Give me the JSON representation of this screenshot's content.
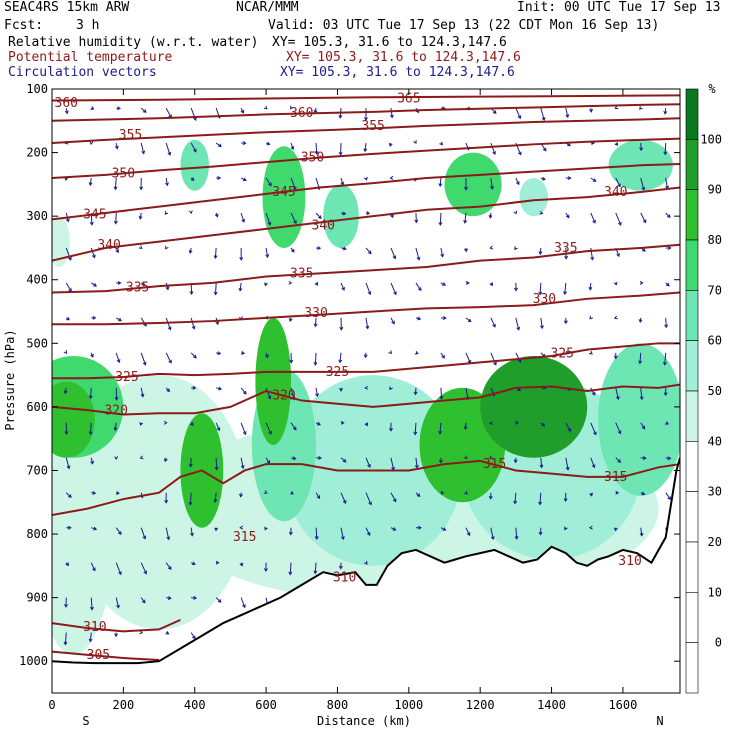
{
  "header": {
    "model": "SEAC4RS 15km ARW",
    "org": "NCAR/MMM",
    "init": "Init: 00 UTC Tue 17 Sep 13",
    "fcst_label": "Fcst:",
    "fcst_value": "3 h",
    "valid": "Valid: 03 UTC Tue 17 Sep 13 (22 CDT Mon 16 Sep 13)",
    "rh_label": "Relative humidity (w.r.t. water)",
    "rh_xy": "XY= 105.3, 31.6 to 124.3,147.6",
    "theta_label": "Potential temperature",
    "theta_xy": "XY= 105.3, 31.6 to 124.3,147.6",
    "vec_label": "Circulation vectors",
    "vec_xy": "XY= 105.3, 31.6 to 124.3,147.6"
  },
  "colors": {
    "theta": "#8b1a1a",
    "vectors": "#1c1c8c",
    "rh_text": "#000000",
    "theta_text": "#8b1a1a",
    "vec_text": "#1c1c8c"
  },
  "chart_data": {
    "type": "heatmap",
    "xlabel": "Distance (km)",
    "ylabel": "Pressure (hPa)",
    "xlim": [
      0,
      1760
    ],
    "ylim": [
      1050,
      100
    ],
    "x_ticks": [
      0,
      200,
      400,
      600,
      800,
      1000,
      1200,
      1400,
      1600
    ],
    "y_ticks": [
      100,
      200,
      300,
      400,
      500,
      600,
      700,
      800,
      900,
      1000
    ],
    "x_end_labels": [
      "S",
      "N"
    ],
    "colorbar": {
      "unit": "%",
      "ticks": [
        0,
        10,
        20,
        30,
        40,
        50,
        60,
        70,
        80,
        90,
        100
      ],
      "colors": [
        "#ffffff",
        "#ffffff",
        "#ffffff",
        "#ffffff",
        "#cdf5e6",
        "#a0eed7",
        "#6ee6b4",
        "#3fd96e",
        "#2fc02f",
        "#1f9e2c",
        "#0a7a1e"
      ]
    },
    "terrain": [
      [
        0,
        1000
      ],
      [
        60,
        1002
      ],
      [
        120,
        1003
      ],
      [
        180,
        1003
      ],
      [
        240,
        1003
      ],
      [
        300,
        1000
      ],
      [
        360,
        980
      ],
      [
        420,
        960
      ],
      [
        480,
        940
      ],
      [
        540,
        925
      ],
      [
        580,
        915
      ],
      [
        640,
        900
      ],
      [
        700,
        880
      ],
      [
        760,
        860
      ],
      [
        800,
        865
      ],
      [
        850,
        860
      ],
      [
        880,
        880
      ],
      [
        910,
        880
      ],
      [
        940,
        850
      ],
      [
        980,
        830
      ],
      [
        1020,
        825
      ],
      [
        1060,
        835
      ],
      [
        1100,
        845
      ],
      [
        1130,
        840
      ],
      [
        1160,
        835
      ],
      [
        1200,
        830
      ],
      [
        1240,
        825
      ],
      [
        1280,
        835
      ],
      [
        1320,
        845
      ],
      [
        1360,
        840
      ],
      [
        1400,
        820
      ],
      [
        1440,
        830
      ],
      [
        1470,
        845
      ],
      [
        1500,
        850
      ],
      [
        1530,
        840
      ],
      [
        1560,
        835
      ],
      [
        1600,
        825
      ],
      [
        1640,
        830
      ],
      [
        1680,
        845
      ],
      [
        1720,
        805
      ],
      [
        1750,
        700
      ],
      [
        1760,
        680
      ]
    ],
    "theta_contours": [
      {
        "value": 305,
        "points": [
          [
            0,
            985
          ],
          [
            100,
            990
          ],
          [
            200,
            995
          ],
          [
            300,
            998
          ]
        ]
      },
      {
        "value": 310,
        "points": [
          [
            0,
            940
          ],
          [
            100,
            948
          ],
          [
            200,
            953
          ],
          [
            300,
            950
          ],
          [
            360,
            935
          ]
        ]
      },
      {
        "value": 315,
        "points": [
          [
            0,
            770
          ],
          [
            100,
            760
          ],
          [
            200,
            745
          ],
          [
            300,
            735
          ],
          [
            360,
            710
          ],
          [
            420,
            700
          ],
          [
            480,
            720
          ],
          [
            540,
            700
          ],
          [
            600,
            690
          ],
          [
            700,
            690
          ],
          [
            800,
            700
          ],
          [
            900,
            700
          ],
          [
            1000,
            700
          ],
          [
            1100,
            690
          ],
          [
            1200,
            685
          ],
          [
            1300,
            700
          ],
          [
            1400,
            705
          ],
          [
            1500,
            710
          ],
          [
            1600,
            710
          ],
          [
            1700,
            695
          ],
          [
            1760,
            690
          ]
        ]
      },
      {
        "value": 320,
        "points": [
          [
            0,
            600
          ],
          [
            100,
            605
          ],
          [
            200,
            612
          ],
          [
            300,
            610
          ],
          [
            400,
            610
          ],
          [
            500,
            600
          ],
          [
            600,
            575
          ],
          [
            700,
            590
          ],
          [
            800,
            595
          ],
          [
            900,
            600
          ],
          [
            1000,
            595
          ],
          [
            1100,
            590
          ],
          [
            1200,
            585
          ],
          [
            1300,
            570
          ],
          [
            1400,
            568
          ],
          [
            1500,
            575
          ],
          [
            1600,
            568
          ],
          [
            1700,
            570
          ],
          [
            1760,
            565
          ]
        ]
      },
      {
        "value": 325,
        "points": [
          [
            0,
            555
          ],
          [
            100,
            555
          ],
          [
            200,
            553
          ],
          [
            300,
            548
          ],
          [
            400,
            550
          ],
          [
            500,
            548
          ],
          [
            600,
            545
          ],
          [
            700,
            545
          ],
          [
            800,
            545
          ],
          [
            900,
            545
          ],
          [
            1000,
            540
          ],
          [
            1100,
            535
          ],
          [
            1200,
            530
          ],
          [
            1300,
            525
          ],
          [
            1400,
            520
          ],
          [
            1500,
            510
          ],
          [
            1600,
            505
          ],
          [
            1700,
            500
          ],
          [
            1760,
            500
          ]
        ]
      },
      {
        "value": 330,
        "points": [
          [
            0,
            470
          ],
          [
            150,
            470
          ],
          [
            300,
            468
          ],
          [
            450,
            465
          ],
          [
            600,
            460
          ],
          [
            750,
            455
          ],
          [
            900,
            450
          ],
          [
            1050,
            445
          ],
          [
            1200,
            443
          ],
          [
            1350,
            440
          ],
          [
            1500,
            430
          ],
          [
            1650,
            425
          ],
          [
            1760,
            420
          ]
        ]
      },
      {
        "value": 335,
        "points": [
          [
            0,
            420
          ],
          [
            150,
            418
          ],
          [
            300,
            410
          ],
          [
            450,
            405
          ],
          [
            600,
            395
          ],
          [
            750,
            390
          ],
          [
            900,
            385
          ],
          [
            1050,
            380
          ],
          [
            1200,
            370
          ],
          [
            1350,
            365
          ],
          [
            1500,
            355
          ],
          [
            1650,
            350
          ],
          [
            1760,
            345
          ]
        ]
      },
      {
        "value": 340,
        "points": [
          [
            0,
            370
          ],
          [
            150,
            350
          ],
          [
            300,
            340
          ],
          [
            450,
            330
          ],
          [
            600,
            320
          ],
          [
            750,
            310
          ],
          [
            900,
            300
          ],
          [
            1050,
            290
          ],
          [
            1200,
            285
          ],
          [
            1350,
            275
          ],
          [
            1500,
            270
          ],
          [
            1650,
            262
          ],
          [
            1760,
            255
          ]
        ]
      },
      {
        "value": 345,
        "points": [
          [
            0,
            305
          ],
          [
            150,
            295
          ],
          [
            300,
            285
          ],
          [
            450,
            275
          ],
          [
            600,
            265
          ],
          [
            750,
            255
          ],
          [
            900,
            248
          ],
          [
            1050,
            240
          ],
          [
            1200,
            235
          ],
          [
            1350,
            230
          ],
          [
            1500,
            225
          ],
          [
            1650,
            220
          ],
          [
            1760,
            218
          ]
        ]
      },
      {
        "value": 350,
        "points": [
          [
            0,
            240
          ],
          [
            150,
            235
          ],
          [
            300,
            228
          ],
          [
            450,
            222
          ],
          [
            600,
            215
          ],
          [
            750,
            208
          ],
          [
            900,
            202
          ],
          [
            1050,
            197
          ],
          [
            1200,
            192
          ],
          [
            1350,
            187
          ],
          [
            1500,
            183
          ],
          [
            1650,
            180
          ],
          [
            1760,
            178
          ]
        ]
      },
      {
        "value": 355,
        "points": [
          [
            0,
            185
          ],
          [
            150,
            180
          ],
          [
            300,
            176
          ],
          [
            450,
            172
          ],
          [
            600,
            168
          ],
          [
            750,
            165
          ],
          [
            900,
            162
          ],
          [
            1050,
            158
          ],
          [
            1200,
            155
          ],
          [
            1350,
            152
          ],
          [
            1500,
            150
          ],
          [
            1650,
            148
          ],
          [
            1760,
            146
          ]
        ]
      },
      {
        "value": 360,
        "points": [
          [
            0,
            150
          ],
          [
            150,
            148
          ],
          [
            300,
            146
          ],
          [
            450,
            143
          ],
          [
            600,
            140
          ],
          [
            750,
            138
          ],
          [
            900,
            136
          ],
          [
            1050,
            133
          ],
          [
            1200,
            131
          ],
          [
            1350,
            129
          ],
          [
            1500,
            127
          ],
          [
            1650,
            125
          ],
          [
            1760,
            124
          ]
        ]
      },
      {
        "value": 365,
        "points": [
          [
            0,
            118
          ],
          [
            300,
            117
          ],
          [
            600,
            115
          ],
          [
            900,
            113
          ],
          [
            1200,
            112
          ],
          [
            1500,
            111
          ],
          [
            1760,
            110
          ]
        ]
      }
    ],
    "contour_label_positions": [
      {
        "value": 360,
        "x": 40,
        "p": 122
      },
      {
        "value": 365,
        "x": 1000,
        "p": 115
      },
      {
        "value": 360,
        "x": 700,
        "p": 138
      },
      {
        "value": 355,
        "x": 220,
        "p": 172
      },
      {
        "value": 355,
        "x": 900,
        "p": 158
      },
      {
        "value": 350,
        "x": 200,
        "p": 233
      },
      {
        "value": 350,
        "x": 730,
        "p": 208
      },
      {
        "value": 345,
        "x": 120,
        "p": 297
      },
      {
        "value": 345,
        "x": 650,
        "p": 262
      },
      {
        "value": 340,
        "x": 1580,
        "p": 262
      },
      {
        "value": 340,
        "x": 160,
        "p": 345
      },
      {
        "value": 340,
        "x": 760,
        "p": 315
      },
      {
        "value": 335,
        "x": 1440,
        "p": 350
      },
      {
        "value": 335,
        "x": 240,
        "p": 412
      },
      {
        "value": 335,
        "x": 700,
        "p": 390
      },
      {
        "value": 330,
        "x": 1380,
        "p": 430
      },
      {
        "value": 330,
        "x": 740,
        "p": 452
      },
      {
        "value": 325,
        "x": 1430,
        "p": 516
      },
      {
        "value": 325,
        "x": 210,
        "p": 553
      },
      {
        "value": 325,
        "x": 800,
        "p": 545
      },
      {
        "value": 320,
        "x": 180,
        "p": 606
      },
      {
        "value": 320,
        "x": 650,
        "p": 582
      },
      {
        "value": 315,
        "x": 1240,
        "p": 690
      },
      {
        "value": 315,
        "x": 1580,
        "p": 710
      },
      {
        "value": 315,
        "x": 540,
        "p": 805
      },
      {
        "value": 310,
        "x": 820,
        "p": 868
      },
      {
        "value": 310,
        "x": 120,
        "p": 946
      },
      {
        "value": 310,
        "x": 1620,
        "p": 842
      },
      {
        "value": 305,
        "x": 130,
        "p": 990
      }
    ],
    "rh_blobs": [
      {
        "x": 200,
        "p": 870,
        "rx": 230,
        "rp": 110,
        "rh": 35
      },
      {
        "x": 60,
        "p": 760,
        "rx": 120,
        "rp": 230,
        "rh": 45
      },
      {
        "x": 300,
        "p": 750,
        "rx": 250,
        "rp": 200,
        "rh": 45
      },
      {
        "x": 60,
        "p": 600,
        "rx": 140,
        "rp": 80,
        "rh": 70
      },
      {
        "x": 40,
        "p": 620,
        "rx": 80,
        "rp": 60,
        "rh": 85
      },
      {
        "x": 420,
        "p": 700,
        "rx": 60,
        "rp": 90,
        "rh": 85
      },
      {
        "x": 620,
        "p": 560,
        "rx": 50,
        "rp": 100,
        "rh": 85
      },
      {
        "x": 650,
        "p": 660,
        "rx": 90,
        "rp": 120,
        "rh": 65
      },
      {
        "x": 900,
        "p": 700,
        "rx": 250,
        "rp": 150,
        "rh": 55
      },
      {
        "x": 1150,
        "p": 660,
        "rx": 120,
        "rp": 90,
        "rh": 85
      },
      {
        "x": 1350,
        "p": 600,
        "rx": 150,
        "rp": 80,
        "rh": 90
      },
      {
        "x": 1400,
        "p": 700,
        "rx": 250,
        "rp": 140,
        "rh": 55
      },
      {
        "x": 1650,
        "p": 620,
        "rx": 120,
        "rp": 120,
        "rh": 60
      },
      {
        "x": 1000,
        "p": 760,
        "rx": 700,
        "rp": 150,
        "rh": 40
      },
      {
        "x": 1000,
        "p": 560,
        "rx": 700,
        "rp": 60,
        "rh": 35
      },
      {
        "x": 400,
        "p": 220,
        "rx": 40,
        "rp": 40,
        "rh": 60
      },
      {
        "x": 650,
        "p": 270,
        "rx": 60,
        "rp": 80,
        "rh": 70
      },
      {
        "x": 810,
        "p": 300,
        "rx": 50,
        "rp": 50,
        "rh": 60
      },
      {
        "x": 1180,
        "p": 250,
        "rx": 80,
        "rp": 50,
        "rh": 70
      },
      {
        "x": 1350,
        "p": 270,
        "rx": 40,
        "rp": 30,
        "rh": 55
      },
      {
        "x": 1650,
        "p": 220,
        "rx": 90,
        "rp": 40,
        "rh": 60
      },
      {
        "x": 20,
        "p": 340,
        "rx": 30,
        "rp": 40,
        "rh": 45
      }
    ]
  }
}
